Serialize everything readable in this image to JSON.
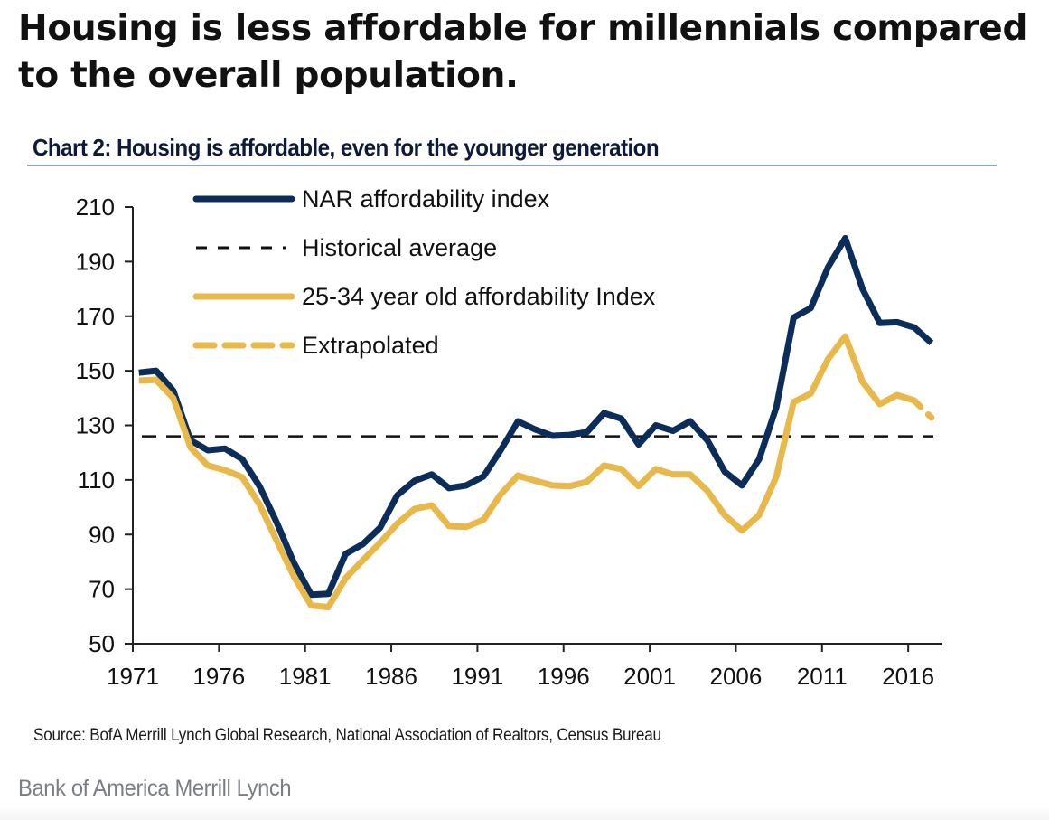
{
  "headline": "Housing is less affordable for millennials compared to the overall population.",
  "source": "Source: BofA Merrill Lynch Global Research, National Association of Realtors, Census Bureau",
  "brand": "Bank of America Merrill Lynch",
  "colors": {
    "nar": "#0c2d5a",
    "young": "#e8b84a",
    "average": "#111111",
    "title": "#0d1a3a",
    "title_rule": "#8ca6c6"
  },
  "chart_data": {
    "type": "line",
    "title": "Chart 2: Housing is affordable, even for the younger generation",
    "xlabel": "",
    "ylabel": "",
    "xlim": [
      1971,
      2018
    ],
    "ylim": [
      50,
      210
    ],
    "x_ticks": [
      1971,
      1976,
      1981,
      1986,
      1991,
      1996,
      2001,
      2006,
      2011,
      2016
    ],
    "y_ticks": [
      50,
      70,
      90,
      110,
      130,
      150,
      170,
      190,
      210
    ],
    "grid": false,
    "legend_position": "top-left",
    "x": [
      1971,
      1972,
      1973,
      1974,
      1975,
      1976,
      1977,
      1978,
      1979,
      1980,
      1981,
      1982,
      1983,
      1984,
      1985,
      1986,
      1987,
      1988,
      1989,
      1990,
      1991,
      1992,
      1993,
      1994,
      1995,
      1996,
      1997,
      1998,
      1999,
      2000,
      2001,
      2002,
      2003,
      2004,
      2005,
      2006,
      2007,
      2008,
      2009,
      2010,
      2011,
      2012,
      2013,
      2014,
      2015,
      2016,
      2017
    ],
    "series": [
      {
        "name": "NAR affordability index",
        "style": "solid",
        "color_key": "nar",
        "values": [
          149.3,
          150,
          142.7,
          124.5,
          120.9,
          121.5,
          117.6,
          107.7,
          94.5,
          79.6,
          68,
          68.3,
          82.9,
          86.5,
          92.5,
          104.4,
          109.7,
          112,
          107,
          108,
          111.3,
          120.9,
          131.5,
          128.5,
          126.2,
          126.5,
          127.5,
          134.5,
          132.5,
          123,
          130,
          128,
          131.5,
          124.5,
          113,
          108,
          117.6,
          136.8,
          169.5,
          173,
          188,
          198.6,
          180,
          167.5,
          167.8,
          165.9,
          160.2
        ]
      },
      {
        "name": "Historical average",
        "style": "dashed",
        "color_key": "average",
        "constant": 126
      },
      {
        "name": "25-34 year old affordability Index",
        "style": "solid",
        "color_key": "young",
        "values": [
          146.4,
          146.7,
          140,
          121.9,
          115.3,
          113.6,
          111,
          101,
          87.8,
          74.6,
          64,
          63.4,
          74,
          80.6,
          87,
          94,
          99.4,
          100.7,
          93.1,
          92.8,
          95.4,
          104.7,
          111.6,
          109.7,
          108,
          107.7,
          109.3,
          115.3,
          114,
          107.7,
          114,
          112,
          112,
          106,
          97.1,
          91.5,
          97.1,
          111.3,
          138.5,
          141.7,
          154.3,
          162.6,
          146,
          137.8,
          141.1,
          139.1,
          null
        ]
      },
      {
        "name": "Extrapolated",
        "style": "dashed",
        "color_key": "young",
        "x": [
          2016,
          2017
        ],
        "values": [
          139.1,
          132.8
        ]
      }
    ]
  }
}
